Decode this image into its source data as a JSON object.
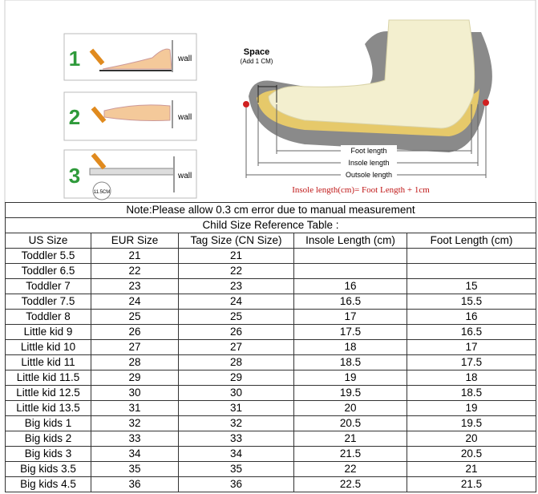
{
  "illustration": {
    "steps": [
      {
        "number": "1",
        "label": "wall"
      },
      {
        "number": "2",
        "label": "wall"
      },
      {
        "number": "3",
        "label": "wall"
      }
    ],
    "ruler_label": "11.5CM",
    "space_label": "Space",
    "space_note": "(Add 1 CM)",
    "dimension_labels": [
      "Foot length",
      "Insole length",
      "Outsole length"
    ],
    "formula": "Insole length(cm)= Foot Length + 1cm"
  },
  "table": {
    "note": "Note:Please allow 0.3 cm error due to manual measurement",
    "title": "Child Size Reference Table :",
    "headers": [
      "US Size",
      "EUR Size",
      "Tag Size (CN Size)",
      "Insole Length (cm)",
      "Foot Length (cm)"
    ],
    "rows": [
      [
        "Toddler 5.5",
        "21",
        "21"
      ],
      [
        "Toddler 6.5",
        "22",
        "22"
      ],
      [
        "Toddler 7",
        "23",
        "23",
        "16",
        "15"
      ],
      [
        "Toddler 7.5",
        "24",
        "24",
        "16.5",
        "15.5"
      ],
      [
        "Toddler 8",
        "25",
        "25",
        "17",
        "16"
      ],
      [
        "Little kid 9",
        "26",
        "26",
        "17.5",
        "16.5"
      ],
      [
        "Little kid 10",
        "27",
        "27",
        "18",
        "17"
      ],
      [
        "Little kid 11",
        "28",
        "28",
        "18.5",
        "17.5"
      ],
      [
        "Little kid 11.5",
        "29",
        "29",
        "19",
        "18"
      ],
      [
        "Little kid 12.5",
        "30",
        "30",
        "19.5",
        "18.5"
      ],
      [
        "Little kid 13.5",
        "31",
        "31",
        "20",
        "19"
      ],
      [
        "Big kids 1",
        "32",
        "32",
        "20.5",
        "19.5"
      ],
      [
        "Big kids 2",
        "33",
        "33",
        "21",
        "20"
      ],
      [
        "Big kids 3",
        "34",
        "34",
        "21.5",
        "20.5"
      ],
      [
        "Big kids 3.5",
        "35",
        "35",
        "22",
        "21"
      ],
      [
        "Big kids 4.5",
        "36",
        "36",
        "22.5",
        "21.5"
      ]
    ]
  }
}
